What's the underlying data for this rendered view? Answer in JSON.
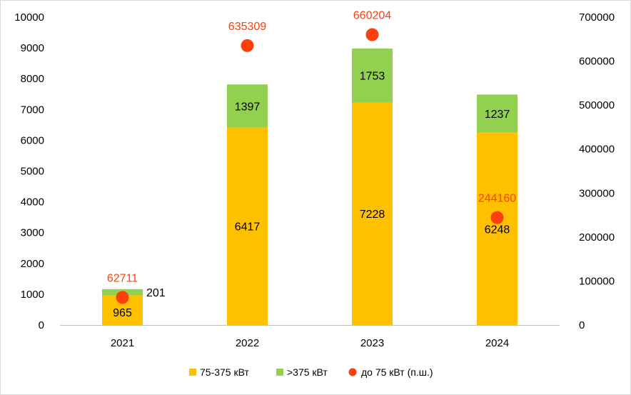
{
  "chart_data": {
    "type": "bar",
    "stacked": true,
    "categories": [
      "2021",
      "2022",
      "2023",
      "2024"
    ],
    "series": [
      {
        "name": "75-375 кВт",
        "axis": "left",
        "color": "#ffc000",
        "values": [
          965,
          6417,
          7228,
          6248
        ]
      },
      {
        "name": ">375 кВт",
        "axis": "left",
        "color": "#92d050",
        "values": [
          201,
          1397,
          1753,
          1237
        ]
      },
      {
        "name": "до 75 кВт (п.ш.)",
        "axis": "right",
        "marker": "circle",
        "color": "#fe3e0b",
        "values": [
          62711,
          635309,
          660204,
          244160
        ]
      }
    ],
    "y_left": {
      "min": 0,
      "max": 10000,
      "step": 1000,
      "ticks": [
        "0",
        "1000",
        "2000",
        "3000",
        "4000",
        "5000",
        "6000",
        "7000",
        "8000",
        "9000",
        "10000"
      ]
    },
    "y_right": {
      "min": 0,
      "max": 700000,
      "step": 100000,
      "ticks": [
        "0",
        "100000",
        "200000",
        "300000",
        "400000",
        "500000",
        "600000",
        "700000"
      ]
    },
    "grid": false,
    "legend": {
      "position": "bottom",
      "items": [
        "75-375 кВт",
        ">375 кВт",
        "до 75 кВт (п.ш.)"
      ]
    },
    "label_colors": {
      "dark": "#000000",
      "red": "#fe3e0b"
    }
  }
}
